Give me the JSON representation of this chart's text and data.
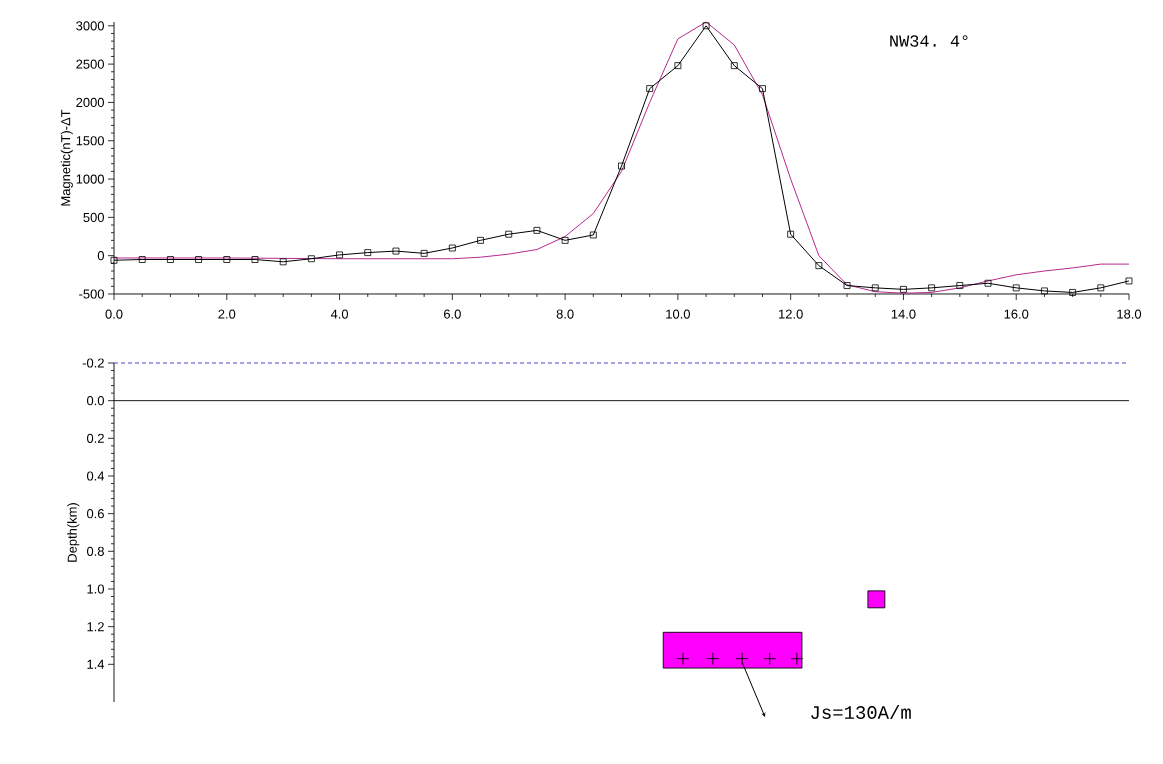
{
  "chart_data": [
    {
      "type": "line",
      "ylabel": "Magnetic(nT)-ΔT",
      "annotations": [
        "NW34. 4°"
      ],
      "xlim": [
        0,
        18
      ],
      "xticks": [
        {
          "value": 0,
          "label": "0.0"
        },
        {
          "value": 2,
          "label": "2.0"
        },
        {
          "value": 4,
          "label": "4.0"
        },
        {
          "value": 6,
          "label": "6.0"
        },
        {
          "value": 8,
          "label": "8.0"
        },
        {
          "value": 10,
          "label": "10.0"
        },
        {
          "value": 12,
          "label": "12.0"
        },
        {
          "value": 14,
          "label": "14.0"
        },
        {
          "value": 16,
          "label": "16.0"
        },
        {
          "value": 18,
          "label": "18.0"
        }
      ],
      "ylim": [
        -500,
        3050
      ],
      "yticks": [
        -500,
        0,
        500,
        1000,
        1500,
        2000,
        2500,
        3000
      ],
      "series": [
        {
          "color": "#b5288f",
          "marker": "none",
          "x": [
            0,
            2,
            4,
            6,
            6.5,
            7,
            7.5,
            8,
            8.5,
            9,
            9.5,
            10,
            10.5,
            11,
            11.5,
            12,
            12.5,
            13,
            13.5,
            14,
            14.5,
            15,
            15.5,
            16,
            16.5,
            17,
            17.5,
            18
          ],
          "values": [
            -30,
            -30,
            -40,
            -40,
            -20,
            20,
            80,
            250,
            550,
            1100,
            2000,
            2830,
            3050,
            2750,
            2100,
            1000,
            0,
            -380,
            -470,
            -490,
            -480,
            -420,
            -330,
            -250,
            -200,
            -160,
            -110,
            -110
          ]
        },
        {
          "color": "#000000",
          "marker": "square",
          "x": [
            0,
            0.5,
            1,
            1.5,
            2,
            2.5,
            3,
            3.5,
            4,
            4.5,
            5,
            5.5,
            6,
            6.5,
            7,
            7.5,
            8,
            8.5,
            9,
            9.5,
            10,
            10.5,
            11,
            11.5,
            12,
            12.5,
            13,
            13.5,
            14,
            14.5,
            15,
            15.5,
            16,
            16.5,
            17,
            17.5,
            18
          ],
          "values": [
            -60,
            -50,
            -50,
            -50,
            -50,
            -50,
            -80,
            -40,
            10,
            40,
            60,
            30,
            100,
            200,
            280,
            330,
            200,
            270,
            1170,
            2180,
            2480,
            3000,
            2480,
            2180,
            280,
            -130,
            -390,
            -420,
            -440,
            -420,
            -390,
            -360,
            -420,
            -460,
            -480,
            -420,
            -330
          ]
        }
      ]
    },
    {
      "type": "line",
      "ylabel": "Depth(km)",
      "tick_labels": "y",
      "annotations": [
        "Js=130A/m"
      ],
      "xlim": [
        0,
        18
      ],
      "ylim": [
        1.6,
        -0.2
      ],
      "yticks": [
        {
          "value": -0.2,
          "label": "-0.2"
        },
        {
          "value": 0,
          "label": "0.0"
        },
        {
          "value": 0.2,
          "label": "0.2"
        },
        {
          "value": 0.4,
          "label": "0.4"
        },
        {
          "value": 0.6,
          "label": "0.6"
        },
        {
          "value": 0.8,
          "label": "0.8"
        },
        {
          "value": 1.0,
          "label": "1.0"
        },
        {
          "value": 1.2,
          "label": "1.2"
        },
        {
          "value": 1.4,
          "label": "1.4"
        }
      ],
      "ref_lines": [
        {
          "axis": "y",
          "value": -0.2,
          "color": "#3333cc",
          "line_style": "dashed"
        },
        {
          "axis": "y",
          "value": 0,
          "color": "#000000",
          "line_style": "solid"
        }
      ],
      "series": [
        {
          "color": "#ff00ff",
          "x": [
            9.74,
            12.2
          ],
          "values": [
            null,
            null
          ],
          "lower": [
            1.23,
            1.23
          ],
          "upper": [
            1.42,
            1.42
          ]
        },
        {
          "color": "#ff00ff",
          "x": [
            13.37,
            13.67
          ],
          "values": [
            null,
            null
          ],
          "lower": [
            1.01,
            1.01
          ],
          "upper": [
            1.1,
            1.1
          ]
        },
        {
          "type": "scatter",
          "color": "#000000",
          "marker": "cross",
          "x": [
            10.09,
            10.62,
            11.14,
            11.63,
            12.11
          ],
          "values": [
            1.37,
            1.37,
            1.37,
            1.37,
            1.37
          ]
        }
      ]
    }
  ]
}
